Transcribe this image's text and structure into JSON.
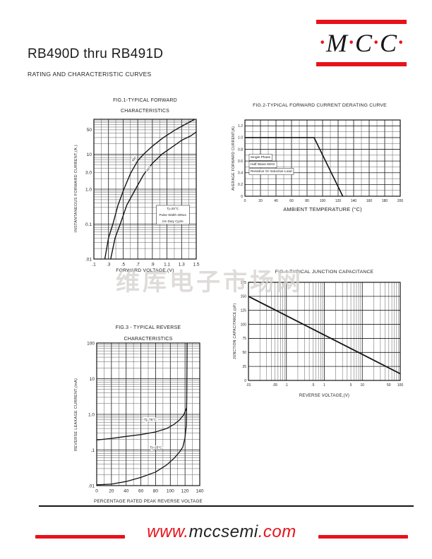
{
  "header": {
    "title": "RB490D thru RB491D",
    "subtitle": "RATING AND CHARACTERISTIC CURVES"
  },
  "logo": {
    "dot": "·",
    "m": "M",
    "c1": "C",
    "c2": "C"
  },
  "page": {
    "watermark": "维库电子市场网"
  },
  "footer": {
    "www": "www.",
    "domain": "mccsemi",
    "com": ".com"
  },
  "colors": {
    "red": "#e8121a",
    "grid": "#4d4d4d",
    "curve": "#141414",
    "watermark": "#d6d0d0"
  },
  "chart_data": [
    {
      "id": "fig1",
      "type": "line",
      "title_lines": [
        "FIG.1-TYPICAL FORWARD",
        "CHARACTERISTICS"
      ],
      "xlabel": "FORWARD VOLTAGE,(V)",
      "ylabel": "INSTANTANEOUS FORWARD CURRENT,(A.)",
      "x": {
        "scale": "linear",
        "min": 0.1,
        "max": 1.5,
        "minor_step": 0.1,
        "ticks": [
          {
            "v": 0.1,
            "label": ".1"
          },
          {
            "v": 0.3,
            "label": ".3"
          },
          {
            "v": 0.5,
            "label": ".5"
          },
          {
            "v": 0.7,
            "label": ".7"
          },
          {
            "v": 0.9,
            "label": ".9"
          },
          {
            "v": 1.1,
            "label": "1.1"
          },
          {
            "v": 1.3,
            "label": "1.3"
          },
          {
            "v": 1.5,
            "label": "1.5"
          }
        ]
      },
      "y": {
        "scale": "log",
        "min": 0.01,
        "max": 100,
        "ticks": [
          {
            "v": 50,
            "label": "50"
          },
          {
            "v": 10,
            "label": "10"
          },
          {
            "v": 3,
            "label": "3.0"
          },
          {
            "v": 1,
            "label": "1.0"
          },
          {
            "v": 0.1,
            "label": "0.1"
          },
          {
            "v": 0.01,
            "label": ".01"
          }
        ]
      },
      "tick_font": 6.5,
      "stroke": 1.4,
      "series": [
        {
          "name": "490",
          "points": [
            [
              0.25,
              0.01
            ],
            [
              0.3,
              0.04
            ],
            [
              0.36,
              0.1
            ],
            [
              0.43,
              0.35
            ],
            [
              0.51,
              1
            ],
            [
              0.6,
              2.8
            ],
            [
              0.7,
              6.5
            ],
            [
              0.78,
              10
            ],
            [
              0.9,
              17
            ],
            [
              1.05,
              30
            ],
            [
              1.2,
              48
            ],
            [
              1.35,
              72
            ],
            [
              1.48,
              100
            ]
          ],
          "label_at": {
            "fx": 0.4,
            "fy": 0.29,
            "rotate": -52,
            "size": 4.5
          }
        },
        {
          "name": "491",
          "points": [
            [
              0.33,
              0.01
            ],
            [
              0.39,
              0.04
            ],
            [
              0.46,
              0.1
            ],
            [
              0.55,
              0.35
            ],
            [
              0.67,
              1
            ],
            [
              0.78,
              2.6
            ],
            [
              0.9,
              5.5
            ],
            [
              1.03,
              10
            ],
            [
              1.15,
              15
            ],
            [
              1.3,
              25
            ],
            [
              1.42,
              33
            ],
            [
              1.5,
              43
            ]
          ],
          "label_at": {
            "fx": 0.54,
            "fy": 0.36,
            "rotate": -52,
            "size": 4.5
          }
        }
      ],
      "note": {
        "lines": [
          "Tj=25°C",
          "Pulse Width 300us",
          "1% Duty Cycle"
        ],
        "fx": 0.77,
        "fy": 0.646,
        "font": 4.6,
        "line_h": 9,
        "boxed": true
      }
    },
    {
      "id": "fig2",
      "type": "line",
      "title_lines": [
        "FIG.2-TYPICAL FORWARD CURRENT DERATING CURVE"
      ],
      "xlabel": "AMBIENT TEMPERATURE (°C)",
      "ylabel": "AVERAGE FORWARD CURRENT(A)",
      "x": {
        "scale": "linear",
        "min": 0,
        "max": 200,
        "minor_step": 10,
        "ticks": [
          {
            "v": 0,
            "label": "0"
          },
          {
            "v": 20,
            "label": "20"
          },
          {
            "v": 40,
            "label": "40"
          },
          {
            "v": 60,
            "label": "60"
          },
          {
            "v": 80,
            "label": "80"
          },
          {
            "v": 100,
            "label": "100"
          },
          {
            "v": 120,
            "label": "120"
          },
          {
            "v": 140,
            "label": "140"
          },
          {
            "v": 160,
            "label": "160"
          },
          {
            "v": 180,
            "label": "180"
          },
          {
            "v": 200,
            "label": "200"
          }
        ]
      },
      "y": {
        "scale": "linear",
        "min": 0,
        "max": 1.3,
        "minor_step": 0.1,
        "ticks": [
          {
            "v": 0,
            "label": "0"
          },
          {
            "v": 0.2,
            "label": "0.2"
          },
          {
            "v": 0.4,
            "label": "0.4"
          },
          {
            "v": 0.6,
            "label": "0.6"
          },
          {
            "v": 0.8,
            "label": "0.8"
          },
          {
            "v": 1.0,
            "label": "1.0"
          },
          {
            "v": 1.2,
            "label": "1.2"
          }
        ]
      },
      "tick_font": 5,
      "stroke": 1.6,
      "series": [
        {
          "name": "derating",
          "points": [
            [
              0,
              1.0
            ],
            [
              89,
              1.0
            ],
            [
              126,
              0
            ]
          ]
        }
      ],
      "note": {
        "lines": [
          "Single Phase",
          "Half Wave 60Hz",
          "Resistive Or Inductive Load"
        ],
        "fx": 0.027,
        "fy": 0.5,
        "font": 4.8,
        "line_h": 10,
        "per_line_box": true
      }
    },
    {
      "id": "fig3",
      "type": "line",
      "title_lines": [
        "FIG.3 - TYPICAL REVERSE",
        "CHARACTERISTICS"
      ],
      "xlabel": "PERCENTAGE RATED PEAK REVERSE VOLTAGE",
      "ylabel": "REVERSE LEAKAGE CURRENT,(mA)",
      "x": {
        "scale": "linear",
        "min": 0,
        "max": 140,
        "minor_step": 10,
        "ticks": [
          {
            "v": 0,
            "label": "0"
          },
          {
            "v": 20,
            "label": "20"
          },
          {
            "v": 40,
            "label": "40"
          },
          {
            "v": 60,
            "label": "60"
          },
          {
            "v": 80,
            "label": "80"
          },
          {
            "v": 100,
            "label": "100"
          },
          {
            "v": 120,
            "label": "120"
          },
          {
            "v": 140,
            "label": "140"
          }
        ]
      },
      "y": {
        "scale": "log",
        "min": 0.01,
        "max": 100,
        "ticks": [
          {
            "v": 100,
            "label": "100"
          },
          {
            "v": 10,
            "label": "10"
          },
          {
            "v": 1,
            "label": "1.0"
          },
          {
            "v": 0.1,
            "label": ".1"
          },
          {
            "v": 0.01,
            "label": ".01"
          }
        ]
      },
      "tick_font": 6.5,
      "stroke": 1.3,
      "series": [
        {
          "name": "Tj=75°C",
          "points": [
            [
              0,
              0.19
            ],
            [
              20,
              0.21
            ],
            [
              40,
              0.24
            ],
            [
              60,
              0.27
            ],
            [
              80,
              0.32
            ],
            [
              95,
              0.4
            ],
            [
              105,
              0.52
            ],
            [
              112,
              0.68
            ],
            [
              118,
              0.95
            ],
            [
              122,
              1.5
            ]
          ],
          "label_at": {
            "fx": 0.52,
            "fy": 0.545,
            "size": 4.8
          }
        },
        {
          "name": "Tj=25°C",
          "points": [
            [
              0,
              0.0105
            ],
            [
              20,
              0.011
            ],
            [
              40,
              0.013
            ],
            [
              60,
              0.017
            ],
            [
              80,
              0.024
            ],
            [
              95,
              0.038
            ],
            [
              105,
              0.058
            ],
            [
              112,
              0.085
            ],
            [
              117,
              0.12
            ],
            [
              120,
              0.22
            ],
            [
              121.8,
              0.5
            ],
            [
              122.4,
              3
            ],
            [
              122.8,
              100
            ]
          ],
          "label_at": {
            "fx": 0.575,
            "fy": 0.74,
            "size": 4.8
          }
        }
      ]
    },
    {
      "id": "fig4",
      "type": "line",
      "title_lines": [
        "FIG.4-TYPICAL JUNCTION CAPACITANCE"
      ],
      "xlabel": "REVERSE VOLTAGE,(V)",
      "ylabel": "JUNCTION CAPACITANCE,(pF)",
      "x": {
        "scale": "log",
        "min": 0.01,
        "max": 100,
        "ticks": [
          {
            "v": 0.01,
            "label": ".01"
          },
          {
            "v": 0.05,
            "label": ".05"
          },
          {
            "v": 0.1,
            "label": ".1"
          },
          {
            "v": 0.5,
            "label": ".5"
          },
          {
            "v": 1,
            "label": "1"
          },
          {
            "v": 5,
            "label": "5"
          },
          {
            "v": 10,
            "label": "10"
          },
          {
            "v": 50,
            "label": "50"
          },
          {
            "v": 100,
            "label": "100"
          }
        ]
      },
      "y": {
        "scale": "linear",
        "min": 0,
        "max": 175,
        "minor_step": 25,
        "ticks": [
          {
            "v": 0,
            "label": "0"
          },
          {
            "v": 25,
            "label": "25"
          },
          {
            "v": 50,
            "label": "50"
          },
          {
            "v": 75,
            "label": "75"
          },
          {
            "v": 100,
            "label": "100"
          },
          {
            "v": 125,
            "label": "125"
          },
          {
            "v": 150,
            "label": "150"
          },
          {
            "v": 175,
            "label": "175"
          }
        ]
      },
      "tick_font": 5,
      "stroke": 1.8,
      "series": [
        {
          "name": "Cj",
          "points": [
            [
              0.01,
              150
            ],
            [
              0.1,
              115.5
            ],
            [
              1,
              81
            ],
            [
              10,
              46.5
            ],
            [
              100,
              12
            ]
          ]
        }
      ]
    }
  ]
}
